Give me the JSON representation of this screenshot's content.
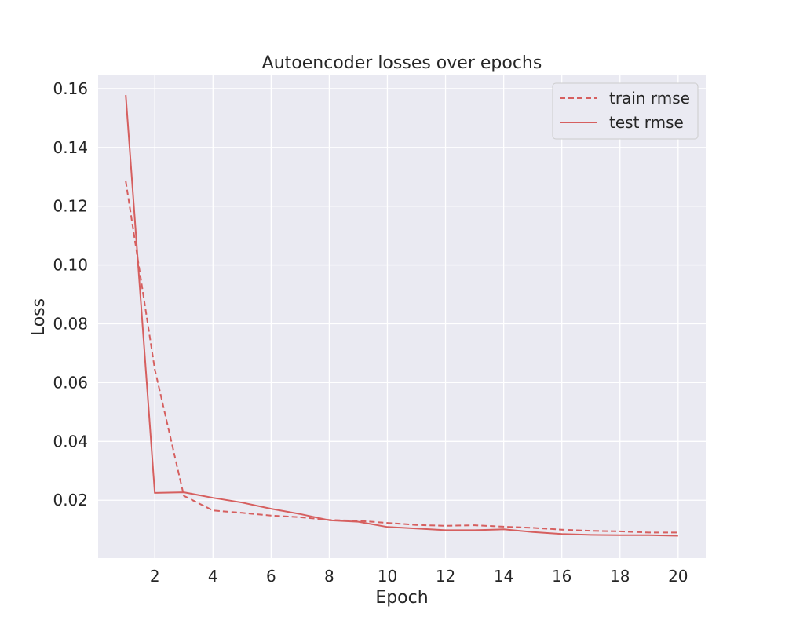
{
  "chart_data": {
    "type": "line",
    "title": "Autoencoder losses over epochs",
    "xlabel": "Epoch",
    "ylabel": "Loss",
    "xlim": [
      0.05,
      20.95
    ],
    "ylim": [
      0.0003,
      0.1645
    ],
    "x_ticks": [
      2,
      4,
      6,
      8,
      10,
      12,
      14,
      16,
      18,
      20
    ],
    "y_ticks": [
      0.02,
      0.04,
      0.06,
      0.08,
      0.1,
      0.12,
      0.14,
      0.16
    ],
    "x_tick_labels": [
      "2",
      "4",
      "6",
      "8",
      "10",
      "12",
      "14",
      "16",
      "18",
      "20"
    ],
    "y_tick_labels": [
      "0.02",
      "0.04",
      "0.06",
      "0.08",
      "0.10",
      "0.12",
      "0.14",
      "0.16"
    ],
    "grid": true,
    "legend_position": "top-right",
    "x": [
      1,
      2,
      3,
      4,
      5,
      6,
      7,
      8,
      9,
      10,
      11,
      12,
      13,
      14,
      15,
      16,
      17,
      18,
      19,
      20
    ],
    "series": [
      {
        "name": "train rmse",
        "style": "dashed",
        "color": "#d65f5f",
        "values": [
          0.1285,
          0.0645,
          0.0215,
          0.0165,
          0.0157,
          0.0148,
          0.0142,
          0.0133,
          0.013,
          0.0123,
          0.0116,
          0.0113,
          0.0115,
          0.011,
          0.0106,
          0.01,
          0.0096,
          0.0094,
          0.009,
          0.009
        ]
      },
      {
        "name": "test rmse",
        "style": "solid",
        "color": "#d65f5f",
        "values": [
          0.1578,
          0.0225,
          0.0227,
          0.0208,
          0.0192,
          0.0171,
          0.0153,
          0.0132,
          0.0127,
          0.0109,
          0.0104,
          0.0098,
          0.0098,
          0.0101,
          0.0092,
          0.0085,
          0.0082,
          0.0081,
          0.0081,
          0.0079
        ]
      }
    ]
  },
  "colors": {
    "plot_background": "#eaeaf2",
    "grid": "#ffffff",
    "line": "#d65f5f",
    "text": "#262626"
  }
}
